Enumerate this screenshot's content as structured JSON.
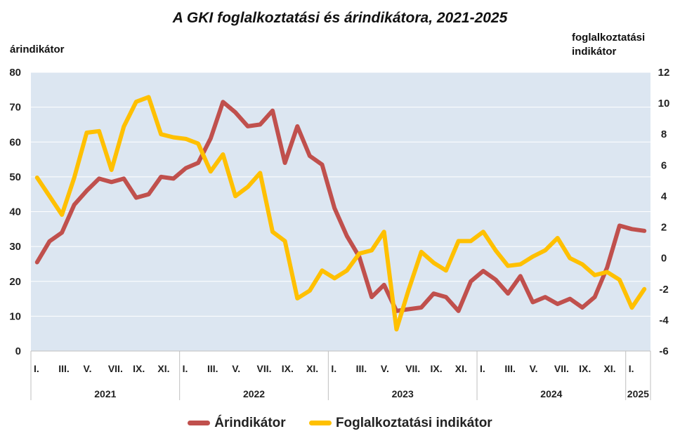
{
  "title": "A GKI foglalkoztatási és árindikátora, 2021-2025",
  "left_axis_label": "árindikátor",
  "right_axis_label_line1": "foglalkoztatási",
  "right_axis_label_line2": "indikátor",
  "colors": {
    "price": "#C0504D",
    "employment": "#FFC000",
    "plot_bg": "#DCE6F1"
  },
  "chart_data": {
    "type": "line",
    "title": "A GKI foglalkoztatási és árindikátora, 2021-2025",
    "ylabel": "árindikátor",
    "ylabel_right": "foglalkoztatási indikátor",
    "ylim": [
      0,
      80
    ],
    "ylim_right": [
      -6,
      12
    ],
    "yticks": [
      0,
      10,
      20,
      30,
      40,
      50,
      60,
      70,
      80
    ],
    "yticks_right": [
      -6,
      -4,
      -2,
      0,
      2,
      4,
      6,
      8,
      10,
      12
    ],
    "month_tick_labels": [
      "I.",
      "III.",
      "V.",
      "VII.",
      "IX.",
      "XI.",
      "I.",
      "III.",
      "V.",
      "VII.",
      "IX.",
      "XI.",
      "I.",
      "III.",
      "V.",
      "VII.",
      "IX.",
      "XI.",
      "I.",
      "III.",
      "V.",
      "VII.",
      "IX.",
      "XI.",
      "I."
    ],
    "years": [
      "2021",
      "2022",
      "2023",
      "2024",
      "2025"
    ],
    "year_months": [
      12,
      12,
      12,
      12,
      2
    ],
    "grid": true,
    "legend_position": "bottom",
    "series": [
      {
        "name": "Árindikátor",
        "axis": "left",
        "values": [
          25.5,
          31.5,
          34,
          42,
          46,
          49.5,
          48.5,
          49.5,
          44,
          45,
          50,
          49.5,
          52.5,
          54,
          61,
          71.5,
          68.5,
          64.5,
          65,
          69,
          54,
          64.5,
          56,
          53.5,
          41,
          33,
          27,
          15.5,
          19,
          11.5,
          12,
          12.5,
          16.5,
          15.5,
          11.5,
          20,
          23,
          20.5,
          16.5,
          21.5,
          14,
          15.5,
          13.5,
          15,
          12.5,
          15.5,
          24,
          36,
          35,
          34.5
        ]
      },
      {
        "name": "Foglalkoztatási indikátor",
        "axis": "right",
        "values": [
          5.2,
          4,
          2.8,
          5.2,
          8.1,
          8.2,
          5.7,
          8.5,
          10.1,
          10.4,
          8,
          7.8,
          7.7,
          7.4,
          5.6,
          6.7,
          4,
          4.6,
          5.5,
          1.7,
          1.1,
          -2.6,
          -2.1,
          -0.8,
          -1.3,
          -0.8,
          0.3,
          0.5,
          1.7,
          -4.6,
          -2,
          0.4,
          -0.3,
          -0.8,
          1.1,
          1.1,
          1.7,
          0.5,
          -0.5,
          -0.4,
          0.1,
          0.5,
          1.3,
          0,
          -0.4,
          -1.1,
          -0.9,
          -1.4,
          -3.2,
          -2
        ]
      }
    ]
  },
  "legend": {
    "price_label": "Árindikátor",
    "employment_label": "Foglalkoztatási indikátor"
  }
}
